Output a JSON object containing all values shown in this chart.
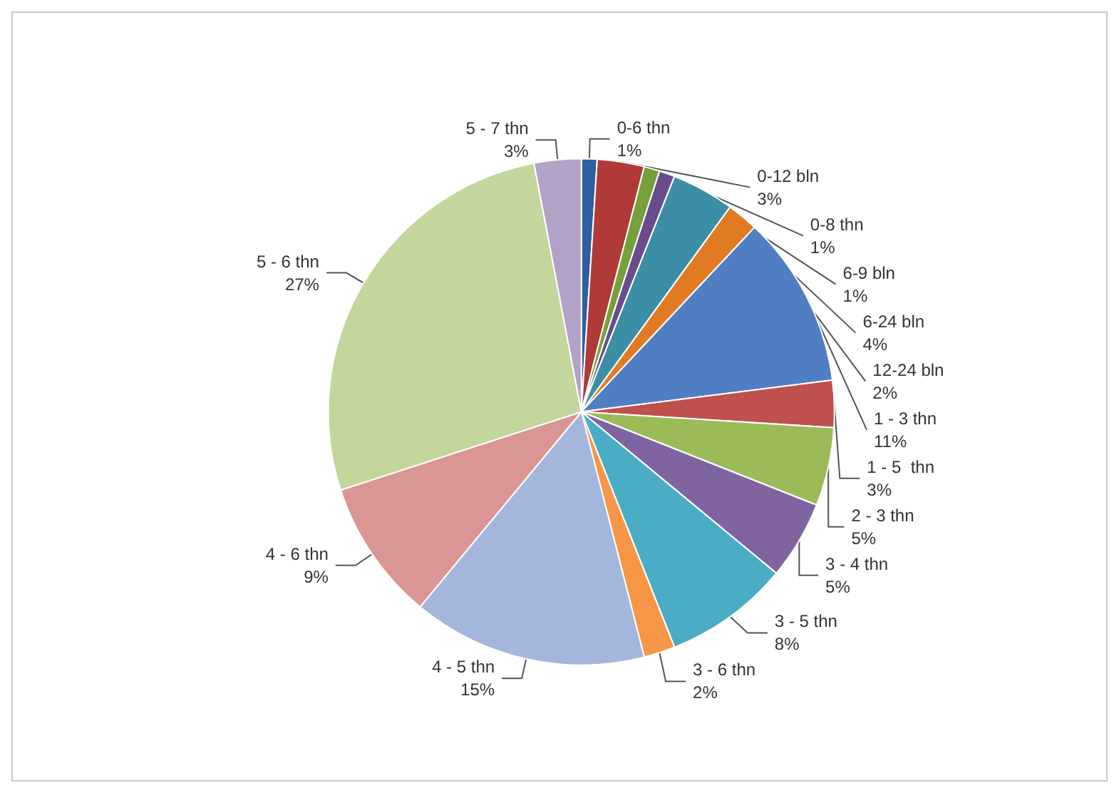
{
  "chart_data": {
    "type": "pie",
    "categories": [
      "0-6 thn",
      "0-12 bln",
      "0-8 thn",
      "6-9 bln",
      "6-24 bln",
      "12-24 bln",
      "1 - 3 thn",
      "1 - 5  thn",
      "2 - 3 thn",
      "3 - 4 thn",
      "3 - 5 thn",
      "3 - 6 thn",
      "4 - 5 thn",
      "4 - 6 thn",
      "5 - 6 thn",
      "5 - 7 thn"
    ],
    "values": [
      1,
      3,
      1,
      1,
      4,
      2,
      11,
      3,
      5,
      5,
      8,
      2,
      15,
      9,
      27,
      3
    ],
    "colors": [
      "#2e5f9e",
      "#b03a38",
      "#77a03c",
      "#6a4c8c",
      "#3b8ea5",
      "#e07b23",
      "#4f7ec2",
      "#c0504d",
      "#9bbb59",
      "#8064a2",
      "#4bacc6",
      "#f79646",
      "#a5b6dc",
      "#d99694",
      "#c3d69b",
      "#b3a2c7"
    ],
    "value_labels": [
      "1%",
      "3%",
      "1%",
      "1%",
      "4%",
      "2%",
      "11%",
      "3%",
      "5%",
      "5%",
      "8%",
      "2%",
      "15%",
      "9%",
      "27%",
      "3%"
    ],
    "legend": false
  }
}
